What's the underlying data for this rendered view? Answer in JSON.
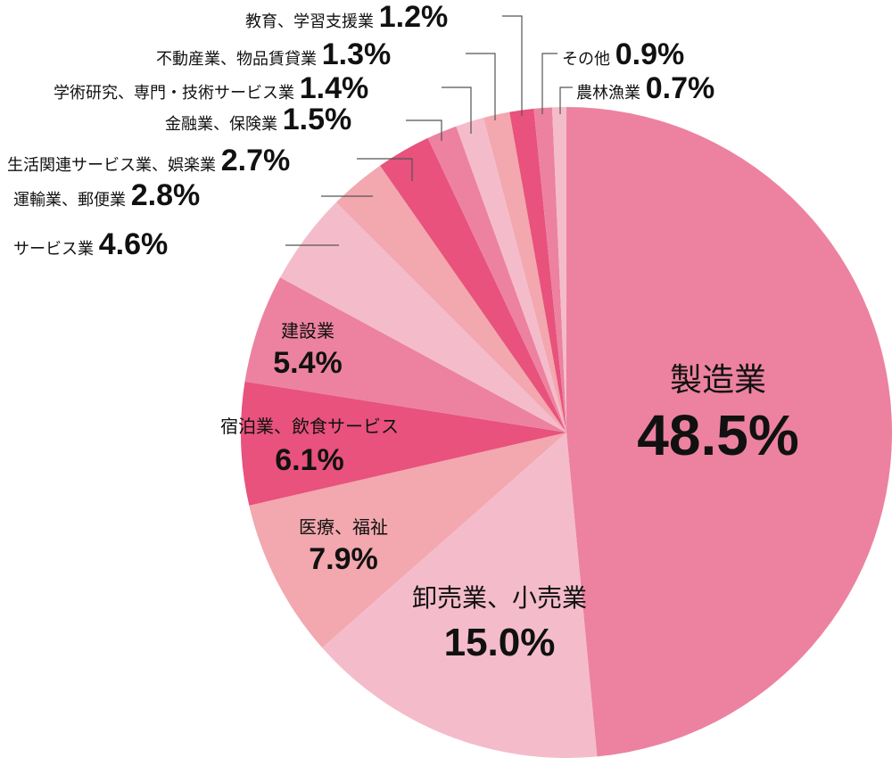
{
  "chart_data": {
    "type": "pie",
    "start": "12 o'clock",
    "direction": "clockwise",
    "slices": [
      {
        "label": "製造業",
        "value": 48.5,
        "value_label": "48.5%",
        "color": "#ec82a0"
      },
      {
        "label": "卸売業、小売業",
        "value": 15.0,
        "value_label": "15.0%",
        "color": "#f4bccb"
      },
      {
        "label": "医療、福祉",
        "value": 7.9,
        "value_label": "7.9%",
        "color": "#f2a8ae"
      },
      {
        "label": "宿泊業、飲食サービス",
        "value": 6.1,
        "value_label": "6.1%",
        "color": "#e8527c"
      },
      {
        "label": "建設業",
        "value": 5.4,
        "value_label": "5.4%",
        "color": "#ec82a0"
      },
      {
        "label": "サービス業",
        "value": 4.6,
        "value_label": "4.6%",
        "color": "#f4bccb"
      },
      {
        "label": "運輸業、郵便業",
        "value": 2.8,
        "value_label": "2.8%",
        "color": "#f2a8ae"
      },
      {
        "label": "生活関連サービス業、娯楽業",
        "value": 2.7,
        "value_label": "2.7%",
        "color": "#e8527c"
      },
      {
        "label": "金融業、保険業",
        "value": 1.5,
        "value_label": "1.5%",
        "color": "#ec82a0"
      },
      {
        "label": "学術研究、専門・技術サービス業",
        "value": 1.4,
        "value_label": "1.4%",
        "color": "#f4bccb"
      },
      {
        "label": "不動産業、物品賃貸業",
        "value": 1.3,
        "value_label": "1.3%",
        "color": "#f2a8ae"
      },
      {
        "label": "教育、学習支援業",
        "value": 1.2,
        "value_label": "1.2%",
        "color": "#e8527c"
      },
      {
        "label": "その他",
        "value": 0.9,
        "value_label": "0.9%",
        "color": "#ec82a0"
      },
      {
        "label": "農林漁業",
        "value": 0.7,
        "value_label": "0.7%",
        "color": "#f4bccb"
      }
    ]
  }
}
